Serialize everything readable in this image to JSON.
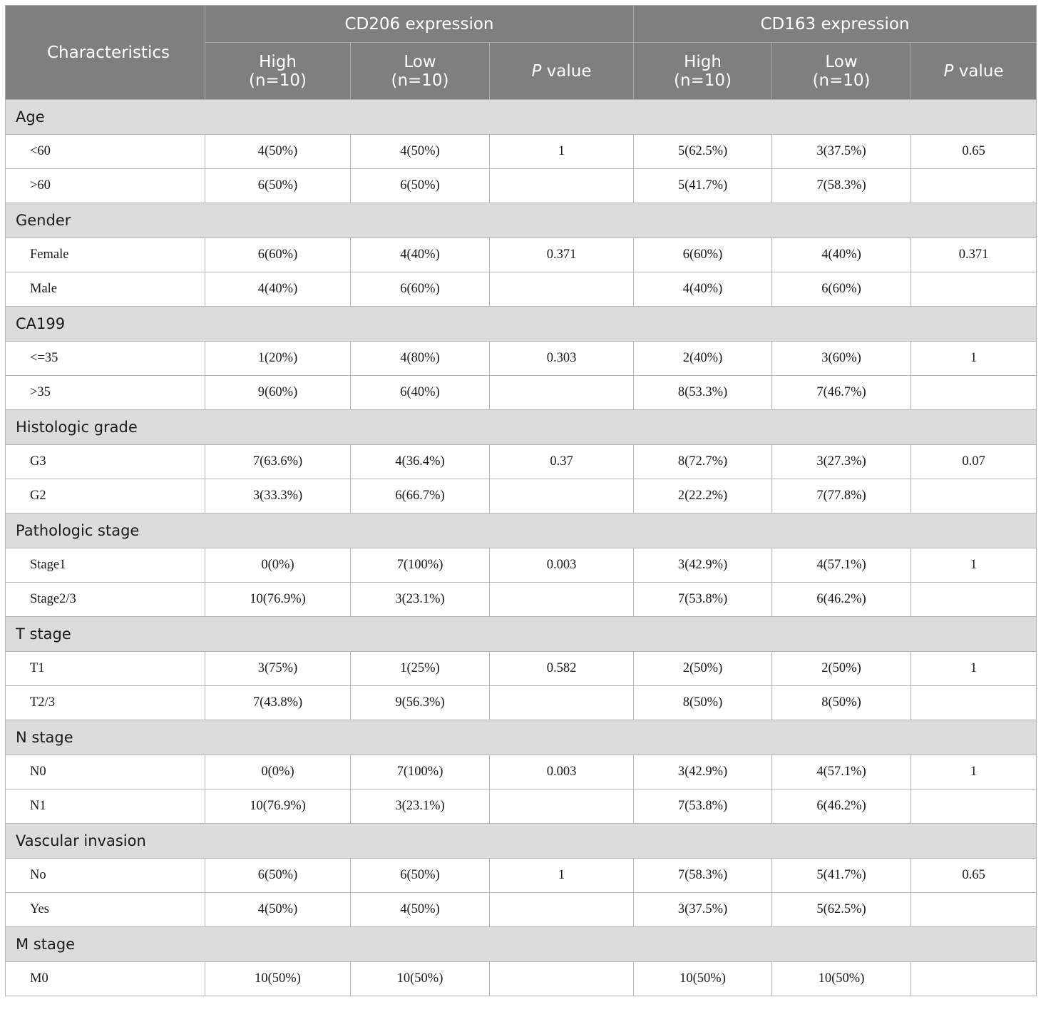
{
  "header": {
    "characteristics": "Characteristics",
    "groups": [
      "CD206 expression",
      "CD163 expression"
    ],
    "high": "High",
    "low": "Low",
    "n": "(n=10)",
    "p_italic": "P",
    "p_rest": " value"
  },
  "sections": [
    {
      "title": "Age",
      "rows": [
        {
          "label": "<60",
          "cd206_high": "4(50%)",
          "cd206_low": "4(50%)",
          "cd206_p": "1",
          "cd163_high": "5(62.5%)",
          "cd163_low": "3(37.5%)",
          "cd163_p": "0.65"
        },
        {
          "label": ">60",
          "cd206_high": "6(50%)",
          "cd206_low": "6(50%)",
          "cd206_p": "",
          "cd163_high": "5(41.7%)",
          "cd163_low": "7(58.3%)",
          "cd163_p": ""
        }
      ]
    },
    {
      "title": "Gender",
      "rows": [
        {
          "label": "Female",
          "cd206_high": "6(60%)",
          "cd206_low": "4(40%)",
          "cd206_p": "0.371",
          "cd163_high": "6(60%)",
          "cd163_low": "4(40%)",
          "cd163_p": "0.371"
        },
        {
          "label": "Male",
          "cd206_high": "4(40%)",
          "cd206_low": "6(60%)",
          "cd206_p": "",
          "cd163_high": "4(40%)",
          "cd163_low": "6(60%)",
          "cd163_p": ""
        }
      ]
    },
    {
      "title": "CA199",
      "rows": [
        {
          "label": "<=35",
          "cd206_high": "1(20%)",
          "cd206_low": "4(80%)",
          "cd206_p": "0.303",
          "cd163_high": "2(40%)",
          "cd163_low": "3(60%)",
          "cd163_p": "1"
        },
        {
          "label": ">35",
          "cd206_high": "9(60%)",
          "cd206_low": "6(40%)",
          "cd206_p": "",
          "cd163_high": "8(53.3%)",
          "cd163_low": "7(46.7%)",
          "cd163_p": ""
        }
      ]
    },
    {
      "title": "Histologic grade",
      "rows": [
        {
          "label": "G3",
          "cd206_high": "7(63.6%)",
          "cd206_low": "4(36.4%)",
          "cd206_p": "0.37",
          "cd163_high": "8(72.7%)",
          "cd163_low": "3(27.3%)",
          "cd163_p": "0.07"
        },
        {
          "label": "G2",
          "cd206_high": "3(33.3%)",
          "cd206_low": "6(66.7%)",
          "cd206_p": "",
          "cd163_high": "2(22.2%)",
          "cd163_low": "7(77.8%)",
          "cd163_p": ""
        }
      ]
    },
    {
      "title": "Pathologic stage",
      "rows": [
        {
          "label": "Stage1",
          "cd206_high": "0(0%)",
          "cd206_low": "7(100%)",
          "cd206_p": "0.003",
          "cd163_high": "3(42.9%)",
          "cd163_low": "4(57.1%)",
          "cd163_p": "1"
        },
        {
          "label": "Stage2/3",
          "cd206_high": "10(76.9%)",
          "cd206_low": "3(23.1%)",
          "cd206_p": "",
          "cd163_high": "7(53.8%)",
          "cd163_low": "6(46.2%)",
          "cd163_p": ""
        }
      ]
    },
    {
      "title": "T stage",
      "rows": [
        {
          "label": "T1",
          "cd206_high": "3(75%)",
          "cd206_low": "1(25%)",
          "cd206_p": "0.582",
          "cd163_high": "2(50%)",
          "cd163_low": "2(50%)",
          "cd163_p": "1"
        },
        {
          "label": "T2/3",
          "cd206_high": "7(43.8%)",
          "cd206_low": "9(56.3%)",
          "cd206_p": "",
          "cd163_high": "8(50%)",
          "cd163_low": "8(50%)",
          "cd163_p": ""
        }
      ]
    },
    {
      "title": "N stage",
      "rows": [
        {
          "label": "N0",
          "cd206_high": "0(0%)",
          "cd206_low": "7(100%)",
          "cd206_p": "0.003",
          "cd163_high": "3(42.9%)",
          "cd163_low": "4(57.1%)",
          "cd163_p": "1"
        },
        {
          "label": "N1",
          "cd206_high": "10(76.9%)",
          "cd206_low": "3(23.1%)",
          "cd206_p": "",
          "cd163_high": "7(53.8%)",
          "cd163_low": "6(46.2%)",
          "cd163_p": ""
        }
      ]
    },
    {
      "title": "Vascular invasion",
      "rows": [
        {
          "label": "No",
          "cd206_high": "6(50%)",
          "cd206_low": "6(50%)",
          "cd206_p": "1",
          "cd163_high": "7(58.3%)",
          "cd163_low": "5(41.7%)",
          "cd163_p": "0.65"
        },
        {
          "label": "Yes",
          "cd206_high": "4(50%)",
          "cd206_low": "4(50%)",
          "cd206_p": "",
          "cd163_high": "3(37.5%)",
          "cd163_low": "5(62.5%)",
          "cd163_p": ""
        }
      ]
    },
    {
      "title": "M stage",
      "rows": [
        {
          "label": "M0",
          "cd206_high": "10(50%)",
          "cd206_low": "10(50%)",
          "cd206_p": "",
          "cd163_high": "10(50%)",
          "cd163_low": "10(50%)",
          "cd163_p": ""
        }
      ]
    }
  ]
}
